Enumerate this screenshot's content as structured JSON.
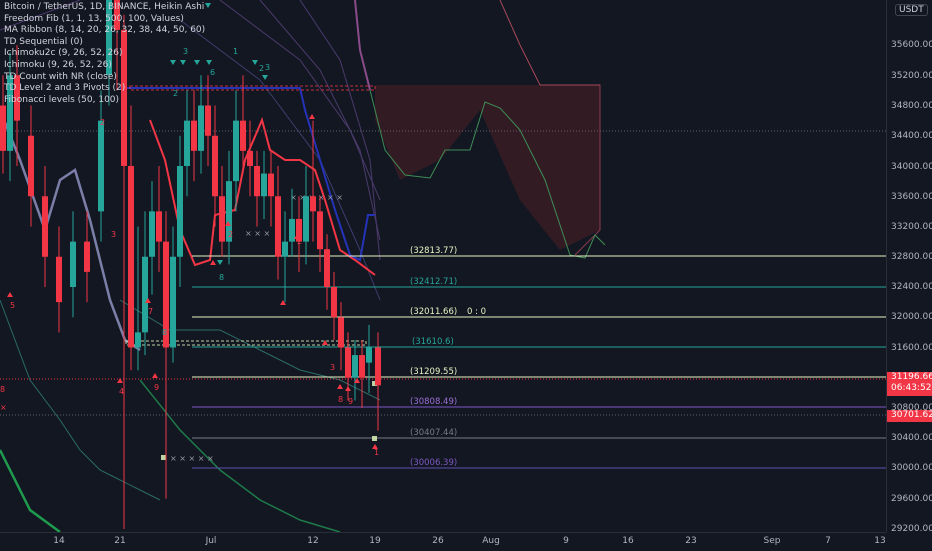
{
  "symbol_title": "Bitcoin / TetherUS, 1D, BINANCE, Heikin Ashi",
  "indicators": [
    "Freedom Fib (1, 1, 13, 500, 100, Values)",
    "MA Ribbon (8, 14, 20, 26, 32, 38, 44, 50, 60)",
    "TD Sequential (0)",
    "Ichimoku2c (9, 26, 52, 26)",
    "Ichimoku (9, 26, 52, 26)",
    "TD Count with NR (close)",
    "TD Level 2 and 3 Pivots (2)",
    "Fibonacci levels (50, 100)"
  ],
  "currency": "USDT",
  "price_scale": [
    "35600.00",
    "35200.00",
    "34800.00",
    "34400.00",
    "34000.00",
    "33600.00",
    "33200.00",
    "32800.00",
    "32400.00",
    "32000.00",
    "31600.00",
    "30800.00",
    "30400.00",
    "30000.00",
    "29600.00",
    "29200.00"
  ],
  "current_price": {
    "price": "31196.66",
    "countdown": "06:43:52",
    "color": "#f23645"
  },
  "secondary_price": {
    "price": "30701.62",
    "color": "#f23645"
  },
  "fib_levels": [
    {
      "label": "(32813.77)",
      "color": "#e8f4c4"
    },
    {
      "label": "(32412.71)",
      "color": "#26a69a"
    },
    {
      "label": "(32011.66)",
      "extra": "0 : 0",
      "color": "#e8f4c4"
    },
    {
      "label": "(31610.6)",
      "color": "#26a69a"
    },
    {
      "label": "(31209.55)",
      "color": "#e8f4c4"
    },
    {
      "label": "(30808.49)",
      "color": "#9c6fd6"
    },
    {
      "label": "(30407.44)",
      "color": "#787b86"
    },
    {
      "label": "(30006.39)",
      "color": "#7e57c2"
    }
  ],
  "time_labels": [
    "14",
    "21",
    "Jul",
    "12",
    "19",
    "26",
    "Aug",
    "9",
    "16",
    "23",
    "Sep",
    "7",
    "13"
  ],
  "chart_data": {
    "type": "candlestick",
    "title": "Bitcoin / TetherUS, 1D, BINANCE, Heikin Ashi",
    "ylim": [
      29100,
      36300
    ],
    "candles": [
      {
        "x": "Jun 14",
        "o": 35200,
        "h": 35800,
        "l": 33900,
        "c": 34200
      },
      {
        "x": "Jun 21",
        "o": 35900,
        "h": 36200,
        "l": 31800,
        "c": 32400
      },
      {
        "x": "Jun 22",
        "o": 32400,
        "h": 35000,
        "l": 29200,
        "c": 31600
      },
      {
        "x": "Jun 28",
        "o": 31700,
        "h": 34800,
        "l": 31300,
        "c": 34000
      },
      {
        "x": "Jul 5",
        "o": 34800,
        "h": 35300,
        "l": 32700,
        "c": 33500
      },
      {
        "x": "Jul 12",
        "o": 33800,
        "h": 34500,
        "l": 32300,
        "c": 32700
      },
      {
        "x": "Jul 16",
        "o": 32300,
        "h": 32500,
        "l": 30900,
        "c": 31400
      },
      {
        "x": "Jul 19",
        "o": 31800,
        "h": 31900,
        "l": 30700,
        "c": 31197
      }
    ]
  }
}
